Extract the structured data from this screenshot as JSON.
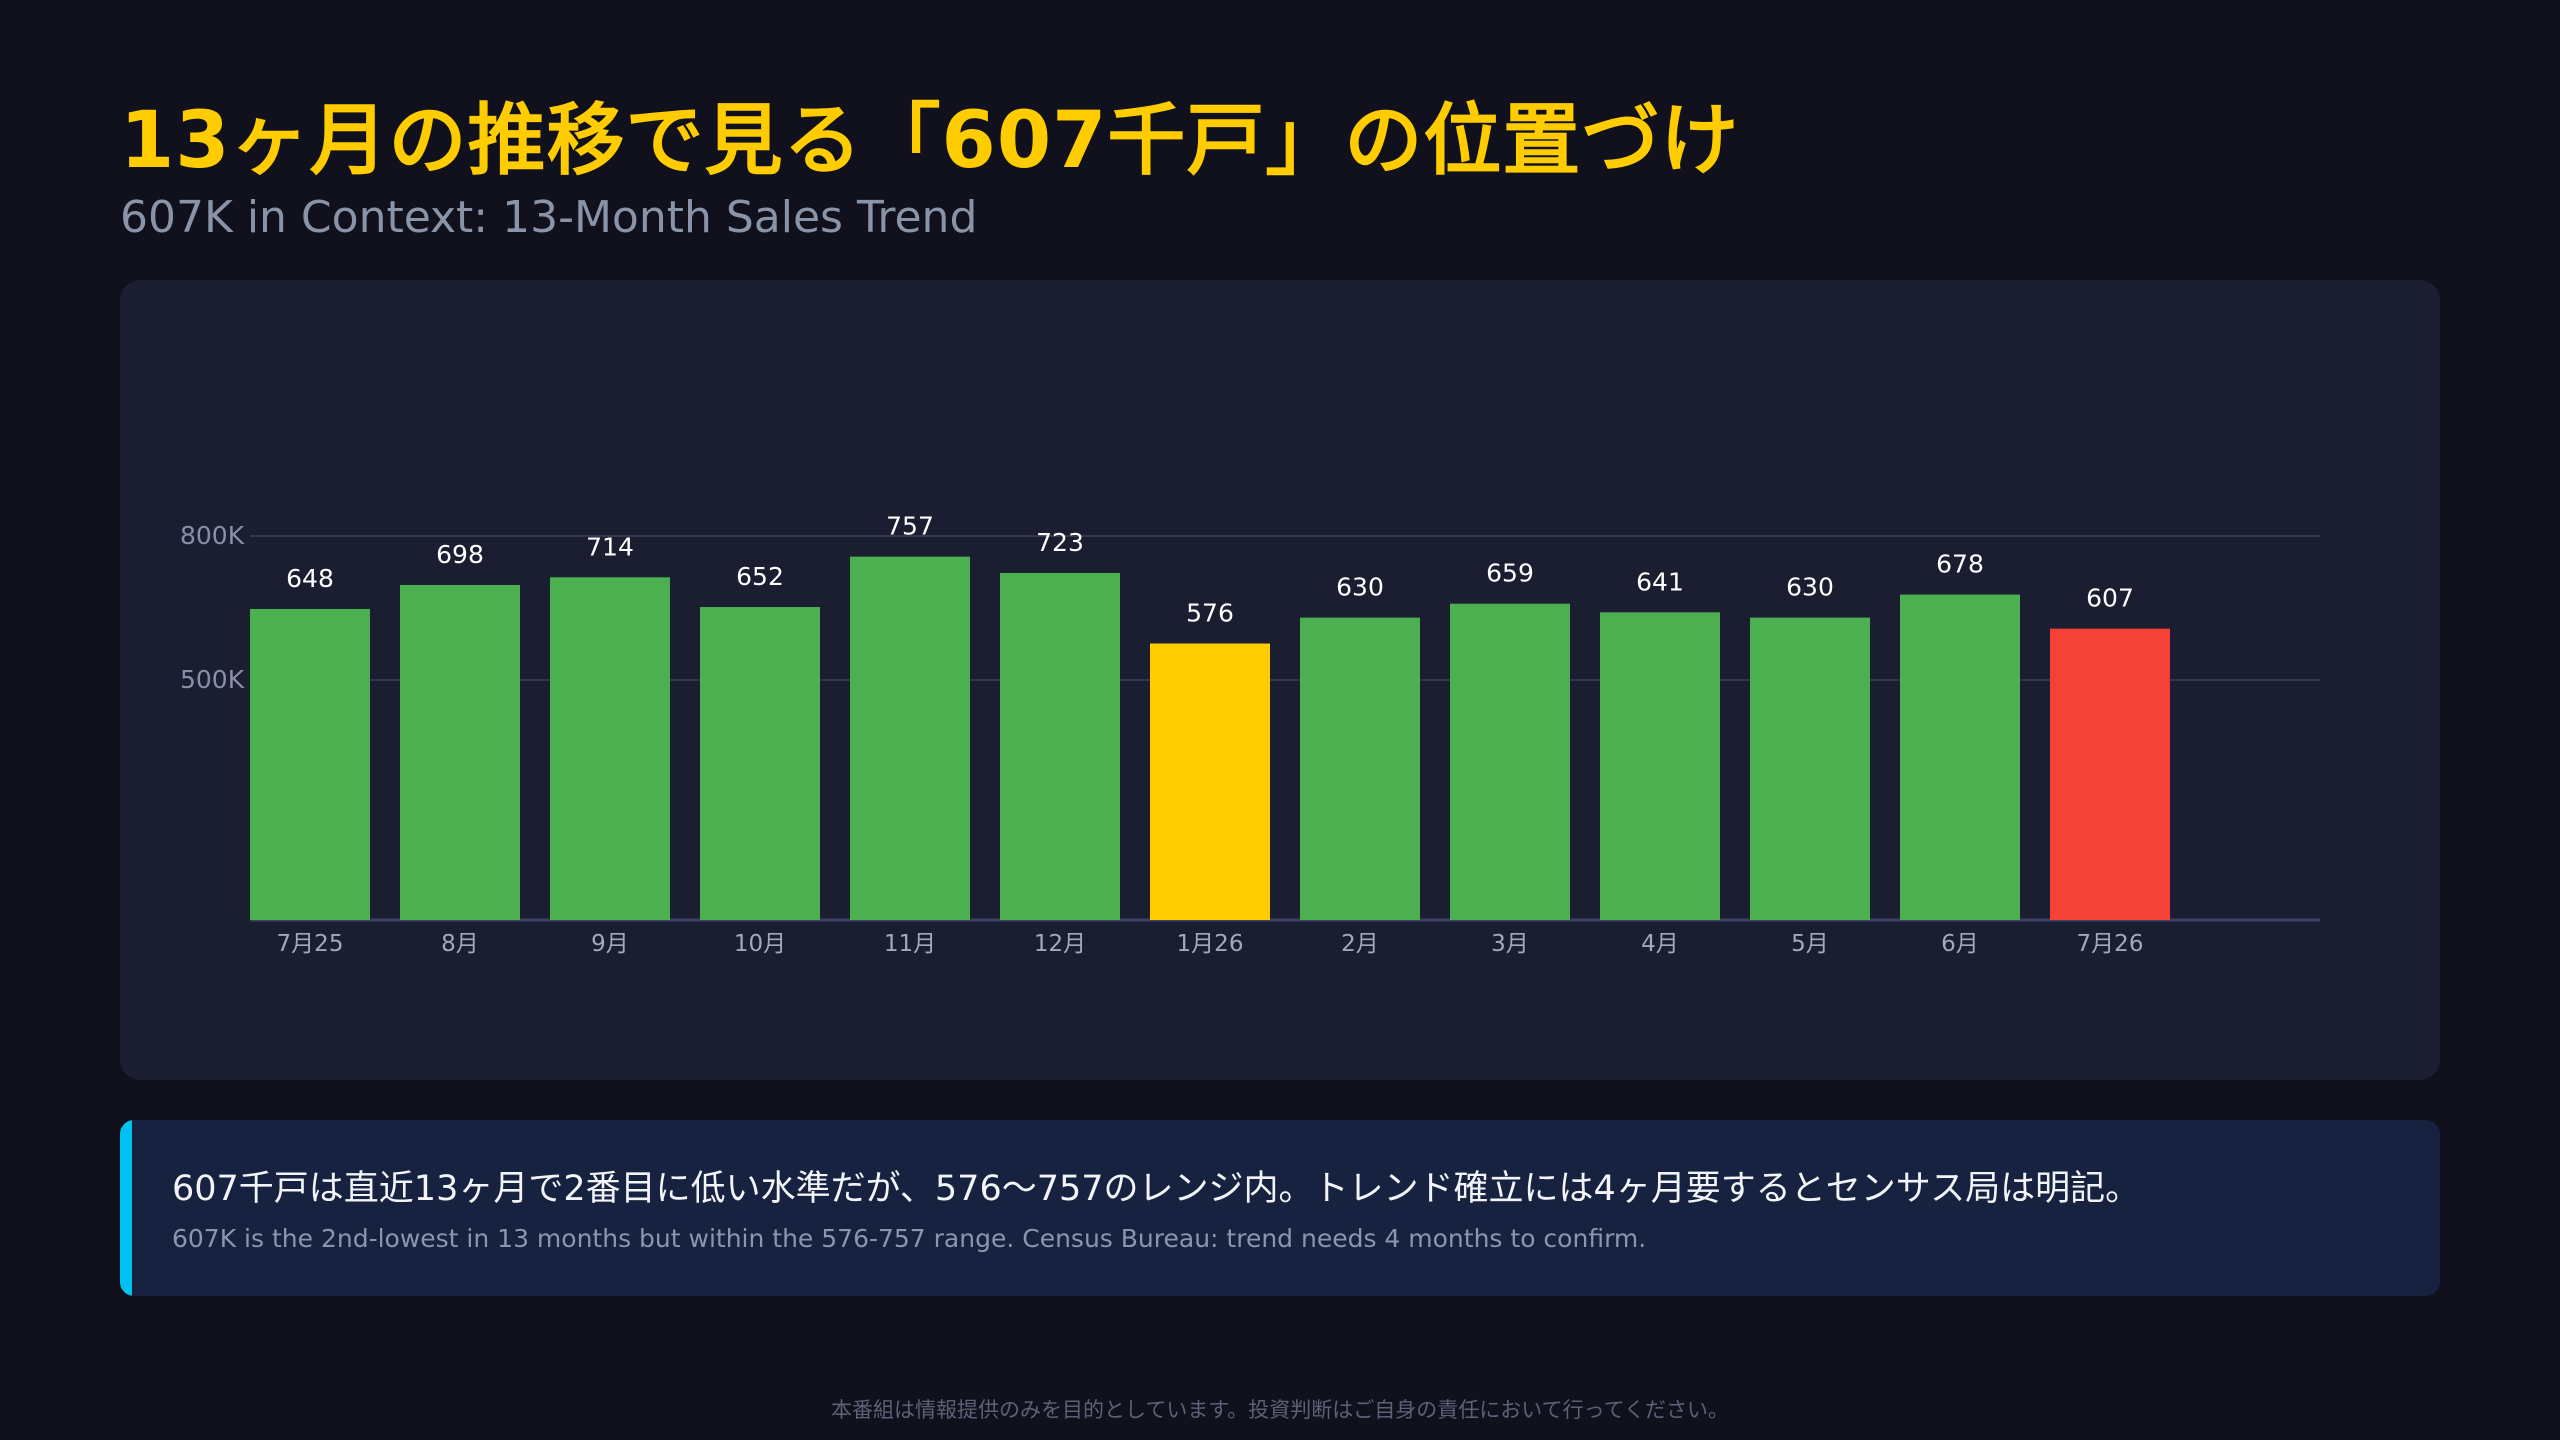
{
  "header": {
    "title": "13ヶ月の推移で見る「607千戸」の位置づけ",
    "subtitle": "607K in Context: 13-Month Sales Trend"
  },
  "chart_data": {
    "type": "bar",
    "categories": [
      "7月25",
      "8月",
      "9月",
      "10月",
      "11月",
      "12月",
      "1月26",
      "2月",
      "3月",
      "4月",
      "5月",
      "6月",
      "7月26"
    ],
    "values": [
      648,
      698,
      714,
      652,
      757,
      723,
      576,
      630,
      659,
      641,
      630,
      678,
      607
    ],
    "data_labels": [
      "648",
      "698",
      "714",
      "652",
      "757",
      "723",
      "576",
      "630",
      "659",
      "641",
      "630",
      "678",
      "607"
    ],
    "y_ticks": [
      {
        "value": 500,
        "label": "500K"
      },
      {
        "value": 800,
        "label": "800K"
      }
    ],
    "grid": true,
    "colors": {
      "default": "#4caf50",
      "highlight_low": "#ffcc00",
      "highlight_current": "#f44336"
    },
    "highlight": {
      "6": "highlight_low",
      "12": "highlight_current"
    }
  },
  "note": {
    "ja": "607千戸は直近13ヶ月で2番目に低い水準だが、576〜757のレンジ内。トレンド確立には4ヶ月要するとセンサス局は明記。",
    "en": "607K is the 2nd-lowest in 13 months but within the 576-757 range. Census Bureau: trend needs 4 months to confirm.",
    "accent_color": "#00c2f0"
  },
  "footer": {
    "disclaimer": "本番組は情報提供のみを目的としています。投資判断はご自身の責任において行ってください。"
  }
}
